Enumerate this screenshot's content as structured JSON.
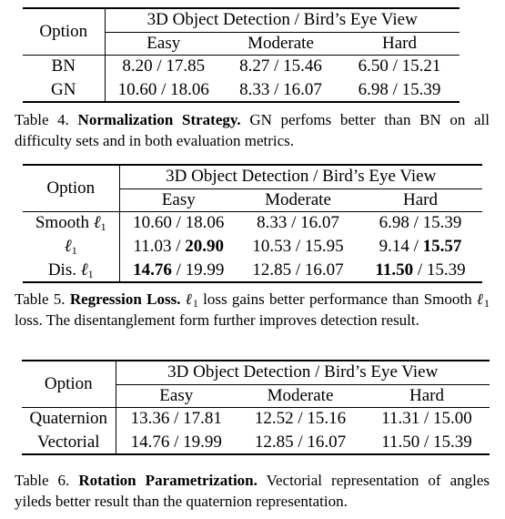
{
  "table4": {
    "option_header": "Option",
    "group_header": "3D Object Detection / Bird’s Eye View",
    "columns": [
      "Easy",
      "Moderate",
      "Hard"
    ],
    "rows": [
      {
        "option": "BN",
        "cells": [
          {
            "a": "8.20",
            "b": "17.85",
            "bold_a": false,
            "bold_b": false
          },
          {
            "a": "8.27",
            "b": "15.46",
            "bold_a": false,
            "bold_b": false
          },
          {
            "a": "6.50",
            "b": "15.21",
            "bold_a": false,
            "bold_b": false
          }
        ]
      },
      {
        "option": "GN",
        "cells": [
          {
            "a": "10.60",
            "b": "18.06",
            "bold_a": true,
            "bold_b": true
          },
          {
            "a": "8.33",
            "b": "16.07",
            "bold_a": true,
            "bold_b": true
          },
          {
            "a": "6.98",
            "b": "15.39",
            "bold_a": true,
            "bold_b": true
          }
        ]
      }
    ],
    "caption_label": "Table 4.",
    "caption_title": "Normalization Strategy.",
    "caption_text": "GN perfoms better than BN on all difficulty sets and in both evaluation metrics."
  },
  "table5": {
    "option_header": "Option",
    "group_header": "3D Object Detection / Bird’s Eye View",
    "columns": [
      "Easy",
      "Moderate",
      "Hard"
    ],
    "rows": [
      {
        "option_pre": "Smooth ",
        "option_math": "ℓ",
        "option_sub": "1",
        "cells": [
          {
            "a": "10.60",
            "b": "18.06",
            "bold_a": false,
            "bold_b": false
          },
          {
            "a": "8.33",
            "b": "16.07",
            "bold_a": false,
            "bold_b": false
          },
          {
            "a": "6.98",
            "b": "15.39",
            "bold_a": false,
            "bold_b": false
          }
        ]
      },
      {
        "option_pre": "",
        "option_math": "ℓ",
        "option_sub": "1",
        "cells": [
          {
            "a": "11.03",
            "b": "20.90",
            "bold_a": false,
            "bold_b": true
          },
          {
            "a": "10.53",
            "b": "15.95",
            "bold_a": false,
            "bold_b": false
          },
          {
            "a": "9.14",
            "b": "15.57",
            "bold_a": false,
            "bold_b": true
          }
        ]
      },
      {
        "option_pre": "Dis. ",
        "option_math": "ℓ",
        "option_sub": "1",
        "cells": [
          {
            "a": "14.76",
            "b": "19.99",
            "bold_a": true,
            "bold_b": false
          },
          {
            "a": "12.85",
            "b": "16.07",
            "bold_a": true,
            "bold_b": true
          },
          {
            "a": "11.50",
            "b": "15.39",
            "bold_a": true,
            "bold_b": false
          }
        ]
      }
    ],
    "caption_label": "Table 5.",
    "caption_title": "Regression Loss.",
    "caption_math": "ℓ",
    "caption_sub": "1",
    "caption_text1": "loss gains better performance than Smooth",
    "caption_math2": "ℓ",
    "caption_sub2": "1",
    "caption_text2": "loss. The disentanglement form further improves detection result."
  },
  "table6": {
    "option_header": "Option",
    "group_header": "3D Object Detection / Bird’s Eye View",
    "columns": [
      "Easy",
      "Moderate",
      "Hard"
    ],
    "rows": [
      {
        "option": "Quaternion",
        "cells": [
          {
            "a": "13.36",
            "b": "17.81",
            "bold_a": false,
            "bold_b": false
          },
          {
            "a": "12.52",
            "b": "15.16",
            "bold_a": false,
            "bold_b": false
          },
          {
            "a": "11.31",
            "b": "15.00",
            "bold_a": false,
            "bold_b": false
          }
        ]
      },
      {
        "option": "Vectorial",
        "cells": [
          {
            "a": "14.76",
            "b": "19.99",
            "bold_a": true,
            "bold_b": true
          },
          {
            "a": "12.85",
            "b": "16.07",
            "bold_a": true,
            "bold_b": true
          },
          {
            "a": "11.50",
            "b": "15.39",
            "bold_a": true,
            "bold_b": true
          }
        ]
      }
    ],
    "caption_label": "Table 6.",
    "caption_title": "Rotation Parametrization.",
    "caption_text": "Vectorial representation of angles yileds better result than the quaternion representation."
  }
}
